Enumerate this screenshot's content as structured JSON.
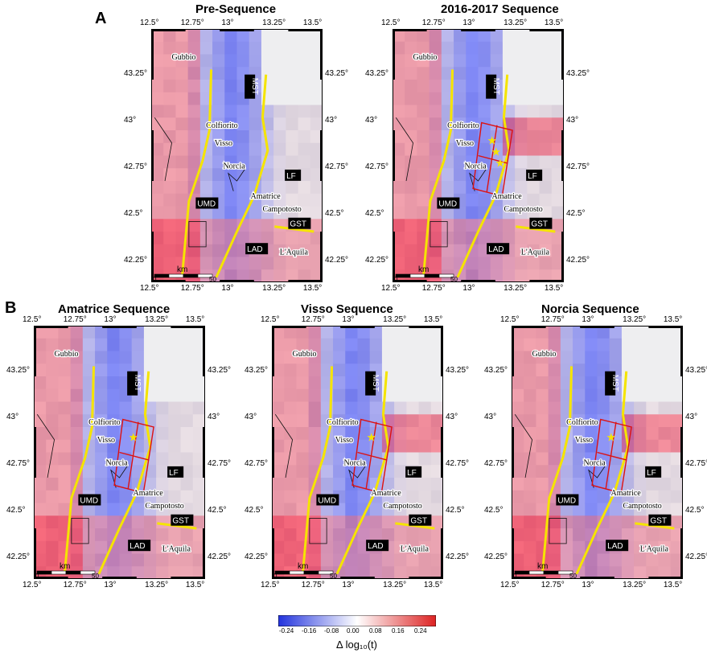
{
  "panel_letters": [
    "A",
    "B"
  ],
  "maps": [
    {
      "title": "Pre-Sequence",
      "rect": false,
      "stars": 0
    },
    {
      "title": "2016-2017 Sequence",
      "rect": true,
      "stars": 3
    },
    {
      "title": "Amatrice Sequence",
      "rect": true,
      "stars": 1
    },
    {
      "title": "Visso Sequence",
      "rect": true,
      "stars": 1
    },
    {
      "title": "Norcia Sequence",
      "rect": true,
      "stars": 1
    }
  ],
  "lon_ticks": [
    "12.5°",
    "12.75°",
    "13°",
    "13.25°",
    "13.5°"
  ],
  "lat_ticks": [
    "43.25°",
    "43°",
    "42.75°",
    "42.5°",
    "42.25°"
  ],
  "places": [
    "Gubbio",
    "Colfiorito",
    "Visso",
    "Norcia",
    "Amatrice",
    "Campotosto",
    "L'Aquila"
  ],
  "structures": [
    "MST",
    "LF",
    "UMD",
    "GST",
    "LAD"
  ],
  "scale_label": "km",
  "scale_ticks": [
    "0",
    "50"
  ],
  "colorbar": {
    "ticks": [
      "-0.24",
      "-0.16",
      "-0.08",
      "0.00",
      "0.08",
      "0.16",
      "0.24"
    ],
    "title": "Δ log₁₀(t)",
    "colors": {
      "low": "#2233dd",
      "mid": "#ffffff",
      "high": "#dd2222"
    }
  }
}
